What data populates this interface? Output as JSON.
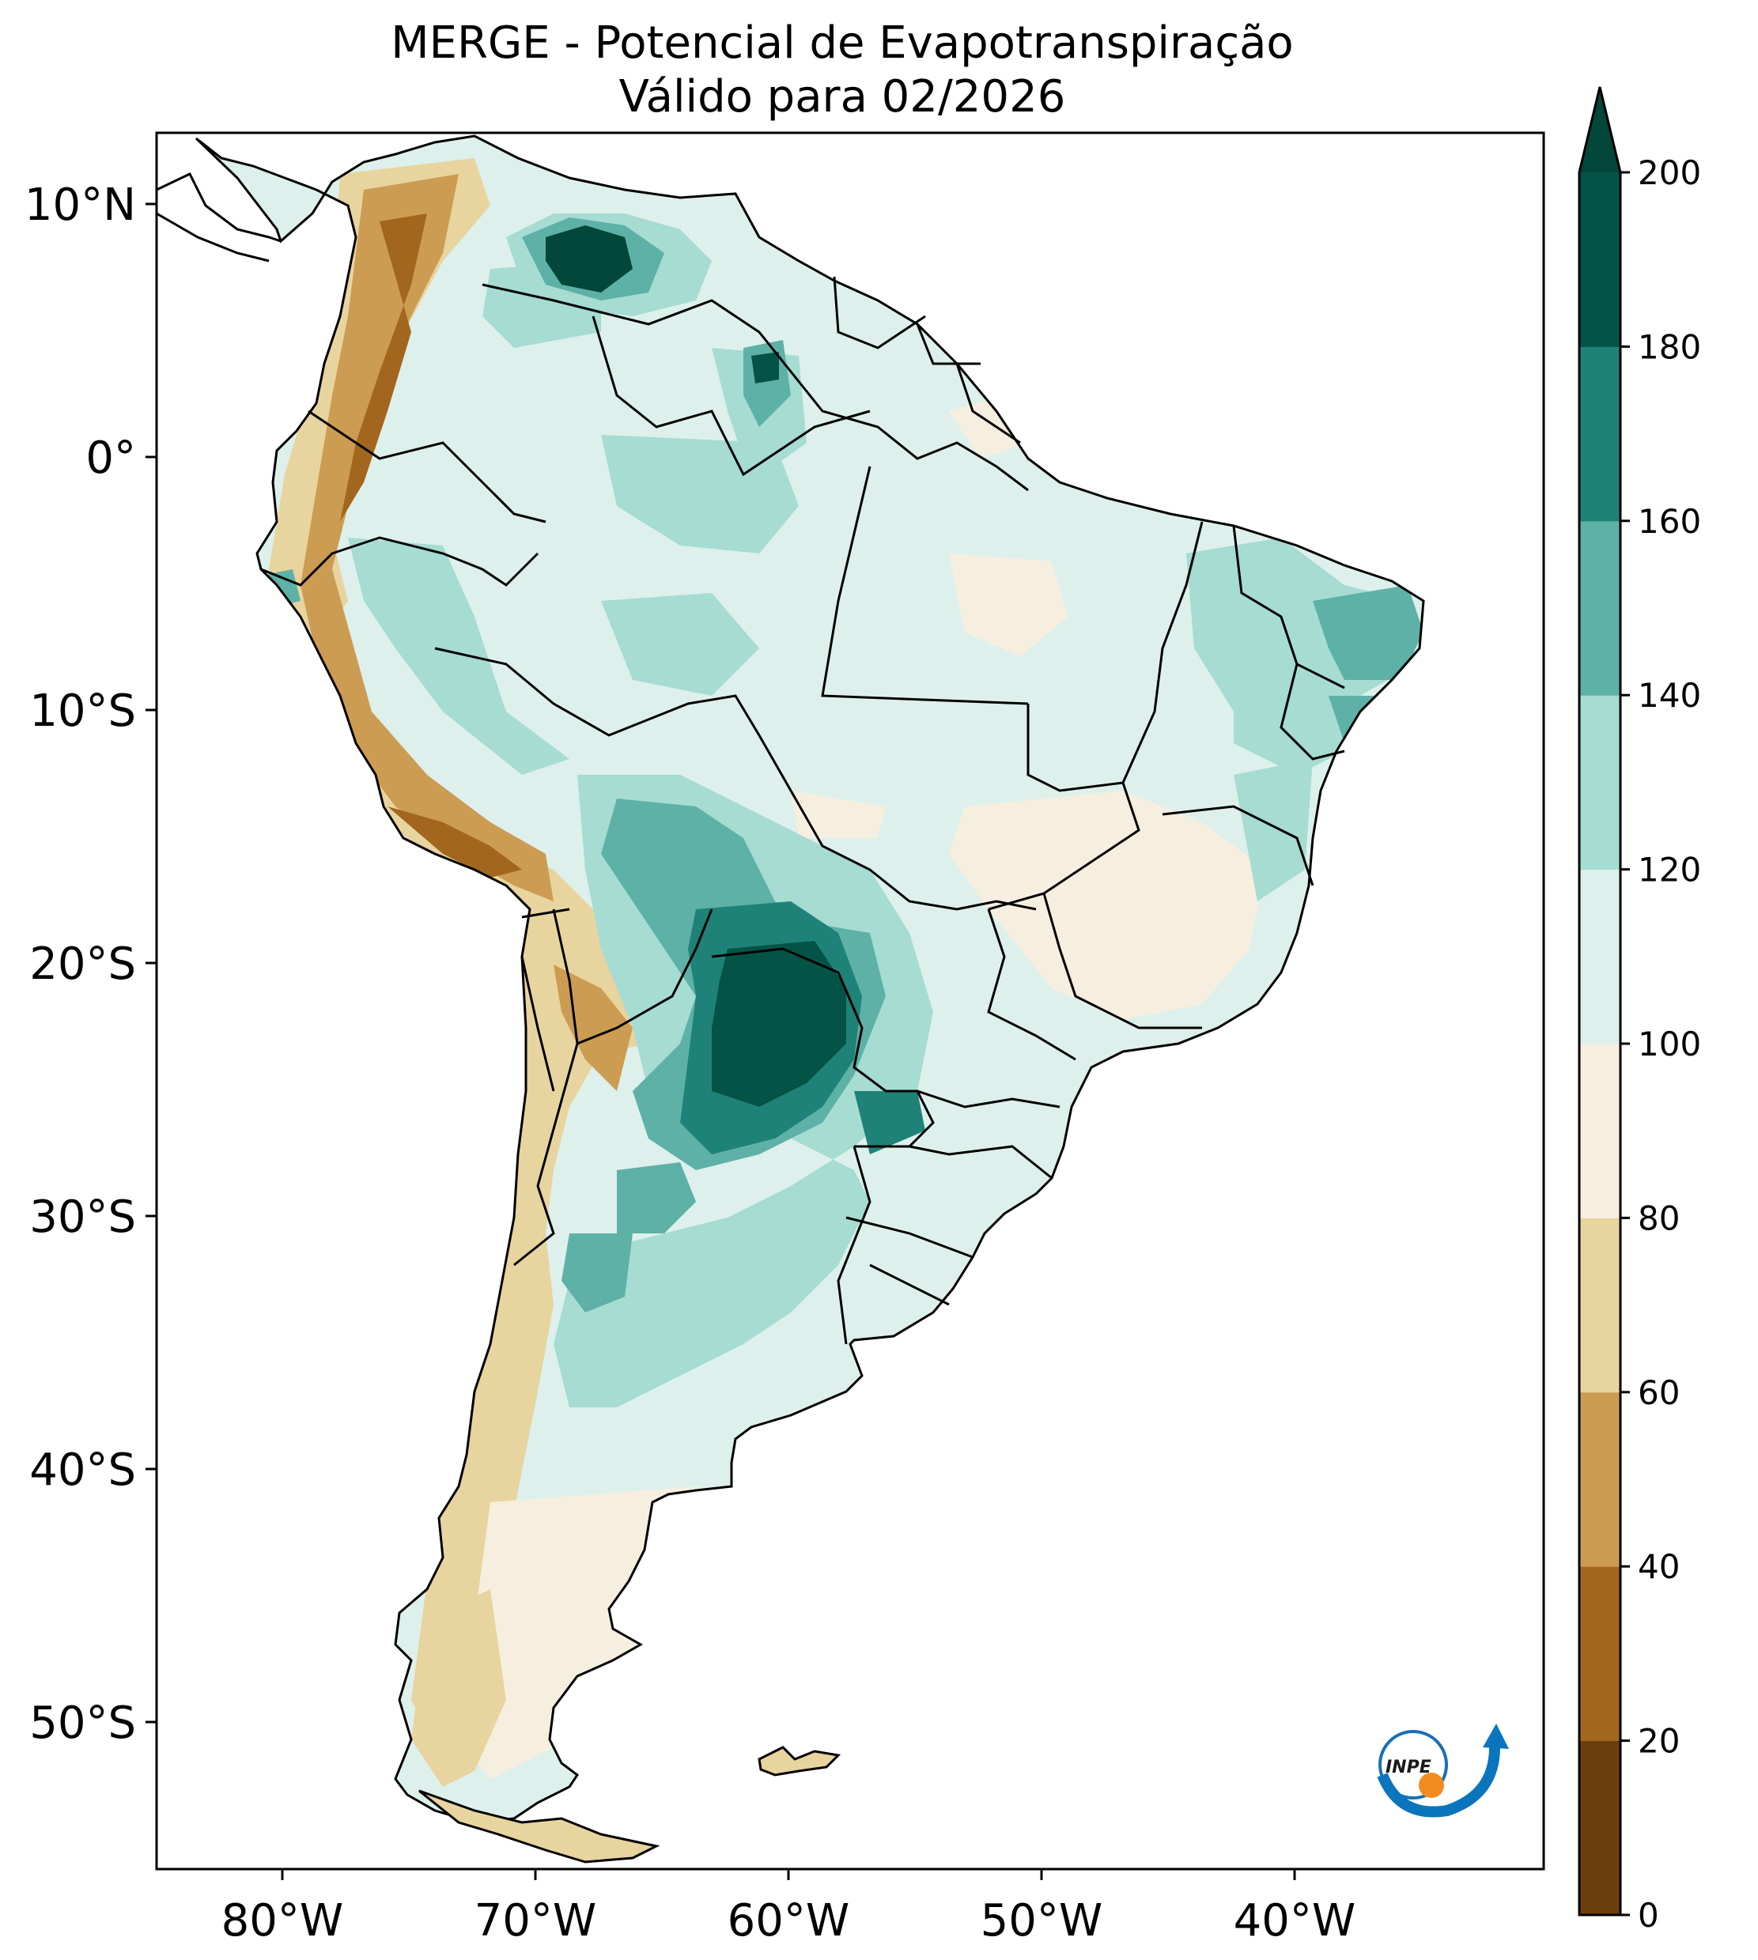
{
  "title": {
    "line1": "MERGE - Potencial de Evapotranspiração",
    "line2": "Válido para 02/2026"
  },
  "map": {
    "lon_ticks": [
      "80°W",
      "70°W",
      "60°W",
      "50°W",
      "40°W"
    ],
    "lat_ticks": [
      "10°N",
      "0°",
      "10°S",
      "20°S",
      "30°S",
      "40°S",
      "50°S"
    ]
  },
  "colorbar": {
    "ticks": [
      "0",
      "20",
      "40",
      "60",
      "80",
      "100",
      "120",
      "140",
      "160",
      "180",
      "200"
    ],
    "colors": [
      "#6d3e0d",
      "#a2661f",
      "#cc9c52",
      "#e8d49e",
      "#f6efdf",
      "#ddf0ec",
      "#a6dcd2",
      "#5eb1a6",
      "#1f8278",
      "#035446"
    ]
  },
  "logo": {
    "text": "INPE"
  },
  "colors": {
    "ocean": "#ffffff",
    "border": "#000000",
    "very_dark_teal": "#02473a",
    "dark_teal": "#035446"
  }
}
